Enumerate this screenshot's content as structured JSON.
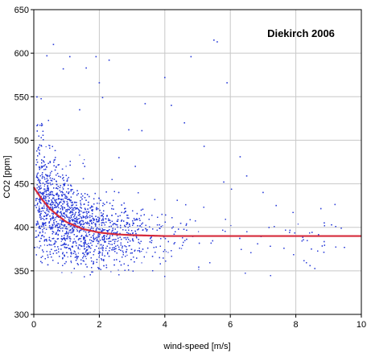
{
  "chart_data": {
    "type": "scatter",
    "title": "Diekirch 2006",
    "xlabel": "wind-speed [m/s]",
    "ylabel": "CO2 [ppm]",
    "xlim": [
      0,
      10
    ],
    "ylim": [
      300,
      650
    ],
    "x_ticks": [
      "0",
      "2",
      "4",
      "6",
      "8",
      "10"
    ],
    "y_ticks": [
      "300",
      "350",
      "400",
      "450",
      "500",
      "550",
      "600",
      "650"
    ],
    "grid": true,
    "legend": "none",
    "colors": {
      "points": "#2a3dd8",
      "fit": "#d62a3a",
      "grid": "#c8c8c8",
      "frame": "#000000",
      "background": "#ffffff"
    },
    "series": [
      {
        "name": "",
        "kind": "scatter",
        "description_values": {
          "approx_n_points": 9000,
          "x_range": [
            0,
            9.5
          ],
          "y_range": [
            340,
            615
          ]
        },
        "outliers": [
          {
            "x": 0.6,
            "y": 610
          },
          {
            "x": 0.4,
            "y": 597
          },
          {
            "x": 1.1,
            "y": 596
          },
          {
            "x": 1.9,
            "y": 596
          },
          {
            "x": 2.3,
            "y": 592
          },
          {
            "x": 4.8,
            "y": 596
          },
          {
            "x": 5.5,
            "y": 615
          },
          {
            "x": 5.6,
            "y": 613
          },
          {
            "x": 5.9,
            "y": 566
          },
          {
            "x": 4.0,
            "y": 572
          },
          {
            "x": 1.6,
            "y": 583
          },
          {
            "x": 0.9,
            "y": 582
          },
          {
            "x": 2.0,
            "y": 566
          },
          {
            "x": 2.1,
            "y": 549
          },
          {
            "x": 3.4,
            "y": 542
          },
          {
            "x": 4.2,
            "y": 540
          },
          {
            "x": 2.9,
            "y": 512
          },
          {
            "x": 3.3,
            "y": 511
          },
          {
            "x": 4.6,
            "y": 520
          },
          {
            "x": 5.2,
            "y": 493
          },
          {
            "x": 6.3,
            "y": 481
          },
          {
            "x": 6.5,
            "y": 459
          },
          {
            "x": 5.8,
            "y": 452
          },
          {
            "x": 7.4,
            "y": 425
          },
          {
            "x": 7.0,
            "y": 440
          },
          {
            "x": 3.1,
            "y": 470
          },
          {
            "x": 2.6,
            "y": 480
          },
          {
            "x": 1.4,
            "y": 535
          }
        ]
      },
      {
        "name": "",
        "kind": "fit-line",
        "x": [
          0,
          0.25,
          0.5,
          0.75,
          1,
          1.5,
          2,
          2.5,
          3,
          4,
          5,
          6,
          7,
          8,
          9,
          10
        ],
        "y": [
          446,
          432,
          421,
          413,
          406,
          398,
          394,
          392,
          391,
          390,
          390,
          390,
          390,
          390,
          390,
          390
        ]
      }
    ]
  }
}
